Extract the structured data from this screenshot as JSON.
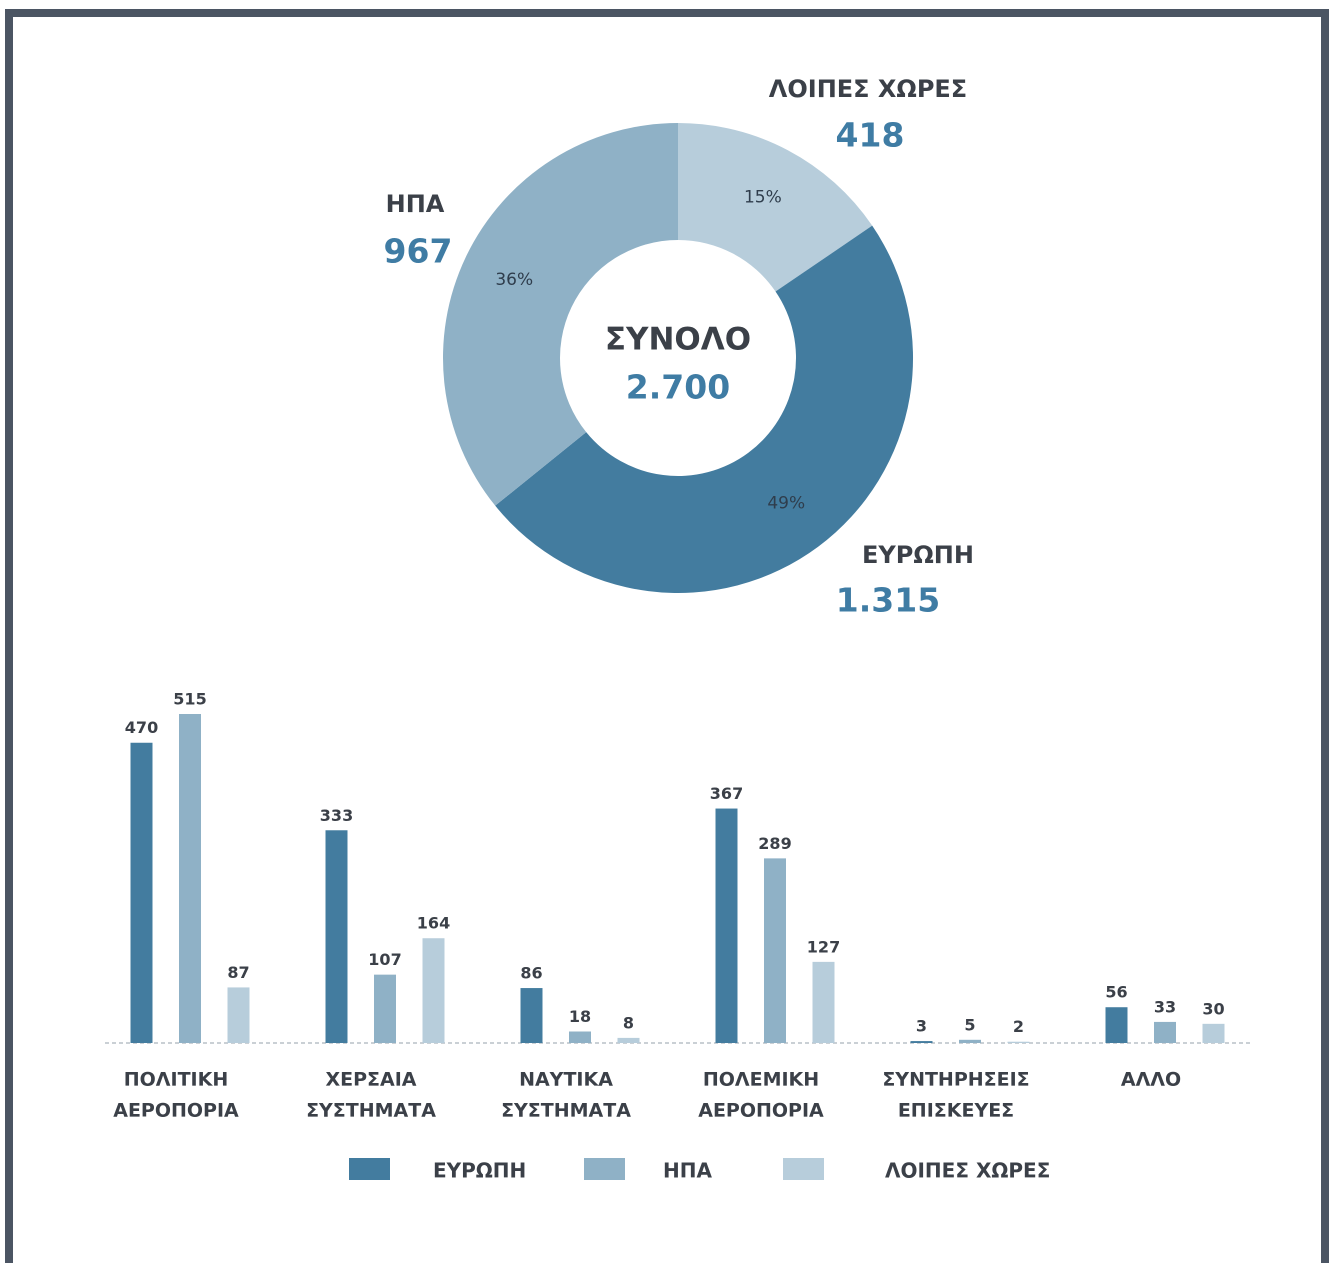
{
  "chart_data": [
    {
      "type": "donut",
      "categories": [
        "ΛΟΙΠΕΣ ΧΩΡΕΣ",
        "ΕΥΡΩΠΗ",
        "ΗΠΑ"
      ],
      "values": [
        418,
        1315,
        967
      ],
      "value_labels": [
        "418",
        "1.315",
        "967"
      ],
      "percents": [
        15,
        49,
        36
      ],
      "percent_labels": [
        "15%",
        "49%",
        "36%"
      ],
      "colors": [
        "#b7cddb",
        "#437c9f",
        "#8fb1c6"
      ],
      "center_label": "ΣΥΝΟΛΟ",
      "total": 2700,
      "total_label": "2.700"
    },
    {
      "type": "grouped_bar",
      "categories": [
        [
          "ΠΟΛΙΤΙΚΗ",
          "ΑΕΡΟΠΟΡΙΑ"
        ],
        [
          "ΧΕΡΣΑΙΑ",
          "ΣΥΣΤΗΜΑΤΑ"
        ],
        [
          "ΝΑΥΤΙΚΑ",
          "ΣΥΣΤΗΜΑΤΑ"
        ],
        [
          "ΠΟΛΕΜΙΚΗ",
          "ΑΕΡΟΠΟΡΙΑ"
        ],
        [
          "ΣΥΝΤΗΡΗΣΕΙΣ",
          "ΕΠΙΣΚΕΥΕΣ"
        ],
        [
          "ΑΛΛΟ"
        ]
      ],
      "series": [
        {
          "name": "ΕΥΡΩΠΗ",
          "color": "#437c9f",
          "values": [
            470,
            333,
            86,
            367,
            3,
            56
          ]
        },
        {
          "name": "ΗΠΑ",
          "color": "#8fb1c6",
          "values": [
            515,
            107,
            18,
            289,
            5,
            33
          ]
        },
        {
          "name": "ΛΟΙΠΕΣ ΧΩΡΕΣ",
          "color": "#b7cddb",
          "values": [
            87,
            164,
            8,
            127,
            2,
            30
          ]
        }
      ]
    }
  ]
}
